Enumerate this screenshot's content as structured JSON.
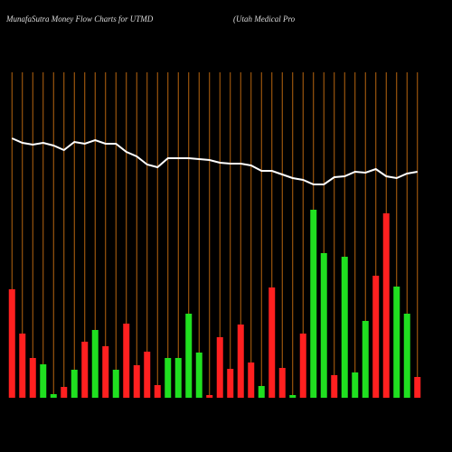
{
  "chart_data": {
    "type": "bar_line",
    "title": "MunafaSutra  Money Flow  Charts for UTMD",
    "subtitle": "(Utah Medical Pro",
    "categories": [
      null,
      null,
      null,
      null,
      null,
      null,
      null,
      null,
      null,
      null,
      null,
      null,
      null,
      null,
      null,
      null,
      null,
      null,
      null,
      null,
      null,
      null,
      null,
      null,
      null,
      null,
      null,
      null,
      null,
      null,
      null,
      null,
      null,
      null,
      null,
      null,
      null,
      null,
      null,
      null
    ],
    "bars": {
      "values": [
        120,
        71,
        44,
        37,
        4,
        12,
        31,
        62,
        75,
        57,
        31,
        82,
        36,
        51,
        14,
        44,
        44,
        93,
        50,
        3,
        67,
        32,
        81,
        39,
        13,
        122,
        33,
        3,
        71,
        208,
        160,
        25,
        156,
        28,
        85,
        135,
        204,
        123,
        93,
        23
      ],
      "colors": [
        "#ff2020",
        "#ff2020",
        "#ff2020",
        "#20e020",
        "#20e020",
        "#ff2020",
        "#20e020",
        "#ff2020",
        "#20e020",
        "#ff2020",
        "#20e020",
        "#ff2020",
        "#ff2020",
        "#ff2020",
        "#ff2020",
        "#20e020",
        "#20e020",
        "#20e020",
        "#20e020",
        "#ff2020",
        "#ff2020",
        "#ff2020",
        "#ff2020",
        "#ff2020",
        "#20e020",
        "#ff2020",
        "#ff2020",
        "#20e020",
        "#ff2020",
        "#20e020",
        "#20e020",
        "#ff2020",
        "#20e020",
        "#20e020",
        "#20e020",
        "#ff2020",
        "#ff2020",
        "#20e020",
        "#20e020",
        "#ff2020"
      ]
    },
    "line": {
      "color": "#ffffff",
      "values": [
        287,
        282,
        280,
        282,
        279,
        274,
        283,
        281,
        285,
        281,
        281,
        272,
        267,
        258,
        255,
        265,
        265,
        265,
        264,
        263,
        260,
        259,
        259,
        257,
        251,
        251,
        247,
        243,
        241,
        236,
        236,
        244,
        245,
        250,
        249,
        253,
        245,
        243,
        248,
        250
      ]
    },
    "ylim": [
      0,
      360
    ],
    "grid": true,
    "grid_color": "#b8650f"
  }
}
